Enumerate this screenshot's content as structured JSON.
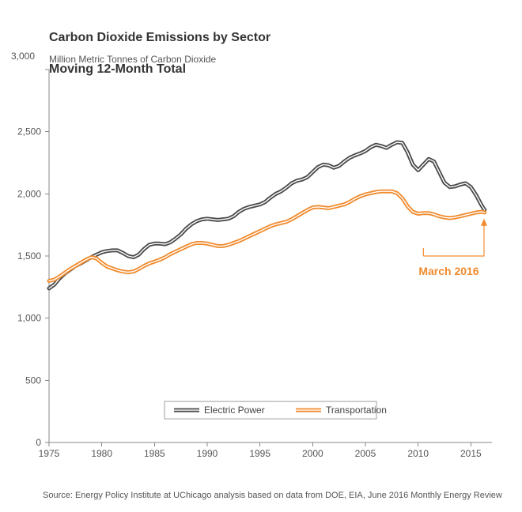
{
  "chart": {
    "type": "line",
    "title_line1": "Carbon Dioxide Emissions by Sector",
    "title_line2": "Moving 12-Month Total",
    "title_fontsize": 16,
    "subtitle": "Million Metric Tonnes of Carbon Dioxide",
    "subtitle_fontsize": 12,
    "ylabel_at_top_tick": "3,000",
    "background_color": "#ffffff",
    "axis_color": "#888888",
    "tick_label_color": "#555555",
    "tick_label_fontsize": 12,
    "xlim": [
      1975,
      2017
    ],
    "ylim": [
      0,
      3000
    ],
    "xticks": [
      1975,
      1980,
      1985,
      1990,
      1995,
      2000,
      2005,
      2010,
      2015
    ],
    "xtick_labels": [
      "1975",
      "1980",
      "1985",
      "1990",
      "1995",
      "2000",
      "2005",
      "2010",
      "2015"
    ],
    "yticks": [
      0,
      500,
      1000,
      1500,
      2000,
      2500,
      3000
    ],
    "ytick_labels": [
      "0",
      "500",
      "1,000",
      "1,500",
      "2,000",
      "2,500",
      "3,000"
    ],
    "grid": false,
    "line_width_outer": 5,
    "line_width_inner_white": 1.4,
    "series": [
      {
        "name": "Electric Power",
        "color": "#4a4a4a",
        "data": [
          [
            1975.0,
            1240
          ],
          [
            1975.5,
            1270
          ],
          [
            1976.0,
            1320
          ],
          [
            1976.5,
            1360
          ],
          [
            1977.0,
            1390
          ],
          [
            1977.5,
            1420
          ],
          [
            1978.0,
            1440
          ],
          [
            1978.5,
            1465
          ],
          [
            1979.0,
            1490
          ],
          [
            1979.5,
            1510
          ],
          [
            1980.0,
            1530
          ],
          [
            1980.5,
            1540
          ],
          [
            1981.0,
            1545
          ],
          [
            1981.5,
            1545
          ],
          [
            1982.0,
            1525
          ],
          [
            1982.5,
            1500
          ],
          [
            1983.0,
            1490
          ],
          [
            1983.5,
            1510
          ],
          [
            1984.0,
            1555
          ],
          [
            1984.5,
            1590
          ],
          [
            1985.0,
            1600
          ],
          [
            1985.5,
            1600
          ],
          [
            1986.0,
            1595
          ],
          [
            1986.5,
            1610
          ],
          [
            1987.0,
            1640
          ],
          [
            1987.5,
            1675
          ],
          [
            1988.0,
            1720
          ],
          [
            1988.5,
            1755
          ],
          [
            1989.0,
            1780
          ],
          [
            1989.5,
            1795
          ],
          [
            1990.0,
            1800
          ],
          [
            1990.5,
            1795
          ],
          [
            1991.0,
            1790
          ],
          [
            1991.5,
            1795
          ],
          [
            1992.0,
            1800
          ],
          [
            1992.5,
            1820
          ],
          [
            1993.0,
            1855
          ],
          [
            1993.5,
            1880
          ],
          [
            1994.0,
            1895
          ],
          [
            1994.5,
            1905
          ],
          [
            1995.0,
            1915
          ],
          [
            1995.5,
            1935
          ],
          [
            1996.0,
            1970
          ],
          [
            1996.5,
            2000
          ],
          [
            1997.0,
            2020
          ],
          [
            1997.5,
            2050
          ],
          [
            1998.0,
            2085
          ],
          [
            1998.5,
            2105
          ],
          [
            1999.0,
            2115
          ],
          [
            1999.5,
            2135
          ],
          [
            2000.0,
            2175
          ],
          [
            2000.5,
            2215
          ],
          [
            2001.0,
            2235
          ],
          [
            2001.5,
            2230
          ],
          [
            2002.0,
            2210
          ],
          [
            2002.5,
            2225
          ],
          [
            2003.0,
            2260
          ],
          [
            2003.5,
            2290
          ],
          [
            2004.0,
            2310
          ],
          [
            2004.5,
            2325
          ],
          [
            2005.0,
            2345
          ],
          [
            2005.5,
            2375
          ],
          [
            2006.0,
            2395
          ],
          [
            2006.5,
            2385
          ],
          [
            2007.0,
            2370
          ],
          [
            2007.5,
            2395
          ],
          [
            2008.0,
            2415
          ],
          [
            2008.5,
            2410
          ],
          [
            2009.0,
            2335
          ],
          [
            2009.5,
            2235
          ],
          [
            2010.0,
            2190
          ],
          [
            2010.5,
            2235
          ],
          [
            2011.0,
            2280
          ],
          [
            2011.5,
            2260
          ],
          [
            2012.0,
            2175
          ],
          [
            2012.5,
            2090
          ],
          [
            2013.0,
            2055
          ],
          [
            2013.5,
            2060
          ],
          [
            2014.0,
            2075
          ],
          [
            2014.5,
            2085
          ],
          [
            2015.0,
            2055
          ],
          [
            2015.5,
            1990
          ],
          [
            2016.0,
            1910
          ],
          [
            2016.3,
            1870
          ]
        ]
      },
      {
        "name": "Transportation",
        "color": "#f08b2e",
        "data": [
          [
            1975.0,
            1300
          ],
          [
            1975.5,
            1310
          ],
          [
            1976.0,
            1335
          ],
          [
            1976.5,
            1365
          ],
          [
            1977.0,
            1395
          ],
          [
            1977.5,
            1420
          ],
          [
            1978.0,
            1445
          ],
          [
            1978.5,
            1470
          ],
          [
            1979.0,
            1490
          ],
          [
            1979.5,
            1480
          ],
          [
            1980.0,
            1445
          ],
          [
            1980.5,
            1415
          ],
          [
            1981.0,
            1400
          ],
          [
            1981.5,
            1385
          ],
          [
            1982.0,
            1375
          ],
          [
            1982.5,
            1370
          ],
          [
            1983.0,
            1375
          ],
          [
            1983.5,
            1395
          ],
          [
            1984.0,
            1420
          ],
          [
            1984.5,
            1440
          ],
          [
            1985.0,
            1455
          ],
          [
            1985.5,
            1470
          ],
          [
            1986.0,
            1490
          ],
          [
            1986.5,
            1515
          ],
          [
            1987.0,
            1535
          ],
          [
            1987.5,
            1555
          ],
          [
            1988.0,
            1575
          ],
          [
            1988.5,
            1595
          ],
          [
            1989.0,
            1605
          ],
          [
            1989.5,
            1605
          ],
          [
            1990.0,
            1600
          ],
          [
            1990.5,
            1590
          ],
          [
            1991.0,
            1580
          ],
          [
            1991.5,
            1580
          ],
          [
            1992.0,
            1590
          ],
          [
            1992.5,
            1605
          ],
          [
            1993.0,
            1620
          ],
          [
            1993.5,
            1640
          ],
          [
            1994.0,
            1660
          ],
          [
            1994.5,
            1680
          ],
          [
            1995.0,
            1700
          ],
          [
            1995.5,
            1720
          ],
          [
            1996.0,
            1740
          ],
          [
            1996.5,
            1755
          ],
          [
            1997.0,
            1765
          ],
          [
            1997.5,
            1775
          ],
          [
            1998.0,
            1795
          ],
          [
            1998.5,
            1820
          ],
          [
            1999.0,
            1845
          ],
          [
            1999.5,
            1870
          ],
          [
            2000.0,
            1890
          ],
          [
            2000.5,
            1895
          ],
          [
            2001.0,
            1890
          ],
          [
            2001.5,
            1885
          ],
          [
            2002.0,
            1895
          ],
          [
            2002.5,
            1905
          ],
          [
            2003.0,
            1915
          ],
          [
            2003.5,
            1935
          ],
          [
            2004.0,
            1960
          ],
          [
            2004.5,
            1980
          ],
          [
            2005.0,
            1995
          ],
          [
            2005.5,
            2005
          ],
          [
            2006.0,
            2015
          ],
          [
            2006.5,
            2020
          ],
          [
            2007.0,
            2020
          ],
          [
            2007.5,
            2020
          ],
          [
            2008.0,
            2005
          ],
          [
            2008.5,
            1965
          ],
          [
            2009.0,
            1900
          ],
          [
            2009.5,
            1855
          ],
          [
            2010.0,
            1840
          ],
          [
            2010.5,
            1845
          ],
          [
            2011.0,
            1845
          ],
          [
            2011.5,
            1835
          ],
          [
            2012.0,
            1820
          ],
          [
            2012.5,
            1810
          ],
          [
            2013.0,
            1805
          ],
          [
            2013.5,
            1810
          ],
          [
            2014.0,
            1820
          ],
          [
            2014.5,
            1830
          ],
          [
            2015.0,
            1840
          ],
          [
            2015.5,
            1850
          ],
          [
            2016.0,
            1855
          ],
          [
            2016.3,
            1850
          ]
        ]
      }
    ],
    "legend": {
      "items": [
        {
          "label": "Electric Power",
          "series_index": 0
        },
        {
          "label": "Transportation",
          "series_index": 1
        }
      ],
      "position": "bottom-center",
      "box_border_color": "#888888"
    },
    "callout": {
      "label": "March  2016",
      "color": "#f08b2e",
      "fontweight": "bold",
      "fontsize": 14,
      "target_year": 2016.25,
      "target_value": 1800,
      "elbow_year": 2010.5,
      "elbow_value": 1500
    }
  },
  "source_text": "Source: Energy Policy Institute at UChicago analysis based on data from DOE, EIA, June 2016 Monthly Energy Review",
  "source_fontsize": 11
}
